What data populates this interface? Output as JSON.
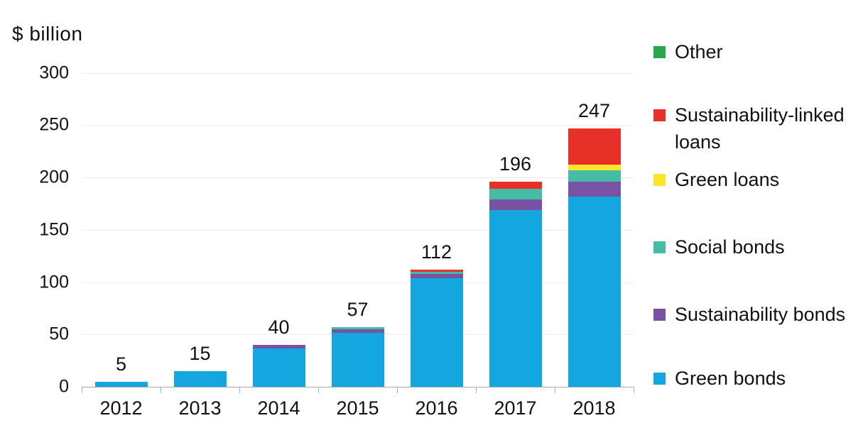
{
  "y_axis_title": "$ billion",
  "chart_data": {
    "type": "bar",
    "stacked": true,
    "title": "",
    "xlabel": "",
    "ylabel": "$ billion",
    "categories": [
      "2012",
      "2013",
      "2014",
      "2015",
      "2016",
      "2017",
      "2018"
    ],
    "series": [
      {
        "name": "Green bonds",
        "color": "#14a7df",
        "values": [
          5,
          15,
          36.5,
          51.5,
          103.5,
          169,
          182
        ]
      },
      {
        "name": "Sustainability bonds",
        "color": "#7852a3",
        "values": [
          0,
          0,
          3.5,
          3.5,
          4.5,
          10,
          14
        ]
      },
      {
        "name": "Social bonds",
        "color": "#45bca6",
        "values": [
          0,
          0,
          0,
          2,
          2,
          10,
          11
        ]
      },
      {
        "name": "Green loans",
        "color": "#fbe62c",
        "values": [
          0,
          0,
          0,
          0,
          0,
          0,
          5
        ]
      },
      {
        "name": "Sustainability-linked loans",
        "color": "#e73128",
        "values": [
          0,
          0,
          0,
          0,
          2,
          7,
          35
        ]
      },
      {
        "name": "Other",
        "color": "#28a74c",
        "values": [
          0,
          0,
          0,
          0,
          0,
          0,
          0
        ]
      }
    ],
    "bar_total_labels": [
      "5",
      "15",
      "40",
      "57",
      "112",
      "196",
      "247"
    ],
    "yticks": [
      0,
      50,
      100,
      150,
      200,
      250,
      300
    ],
    "ylim": [
      0,
      300
    ],
    "grid": true,
    "legend_position": "right",
    "legend_order": [
      "Other",
      "Sustainability-linked loans",
      "Green loans",
      "Social bonds",
      "Sustainability bonds",
      "Green bonds"
    ]
  },
  "colors": {
    "background": "#ffffff",
    "text": "#111111",
    "gridline": "#ededed",
    "axis": "#ababab",
    "green_bonds": "#14a7df",
    "sustainability_bonds": "#7852a3",
    "social_bonds": "#45bca6",
    "green_loans": "#fbe62c",
    "sustainability_linked_loans": "#e73128",
    "other": "#28a74c"
  }
}
